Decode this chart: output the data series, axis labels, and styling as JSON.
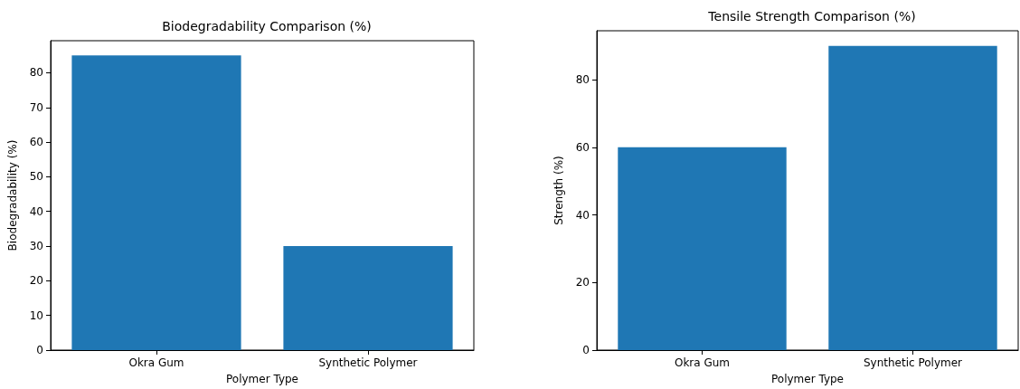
{
  "chart_data": [
    {
      "type": "bar",
      "title": "Biodegradability Comparison (%)",
      "xlabel": "Polymer Type",
      "ylabel": "Biodegradability (%)",
      "categories": [
        "Okra Gum",
        "Synthetic Polymer"
      ],
      "values": [
        85,
        30
      ],
      "color": "#1f77b4",
      "ylim": [
        0,
        89.25
      ],
      "yticks": [
        0,
        10,
        20,
        30,
        40,
        50,
        60,
        70,
        80
      ]
    },
    {
      "type": "bar",
      "title": "Tensile Strength Comparison (%)",
      "xlabel": "Polymer Type",
      "ylabel": "Strength (%)",
      "categories": [
        "Okra Gum",
        "Synthetic Polymer"
      ],
      "values": [
        60,
        90
      ],
      "color": "#1f77b4",
      "ylim": [
        0,
        94.5
      ],
      "yticks": [
        0,
        20,
        40,
        60,
        80
      ]
    }
  ]
}
